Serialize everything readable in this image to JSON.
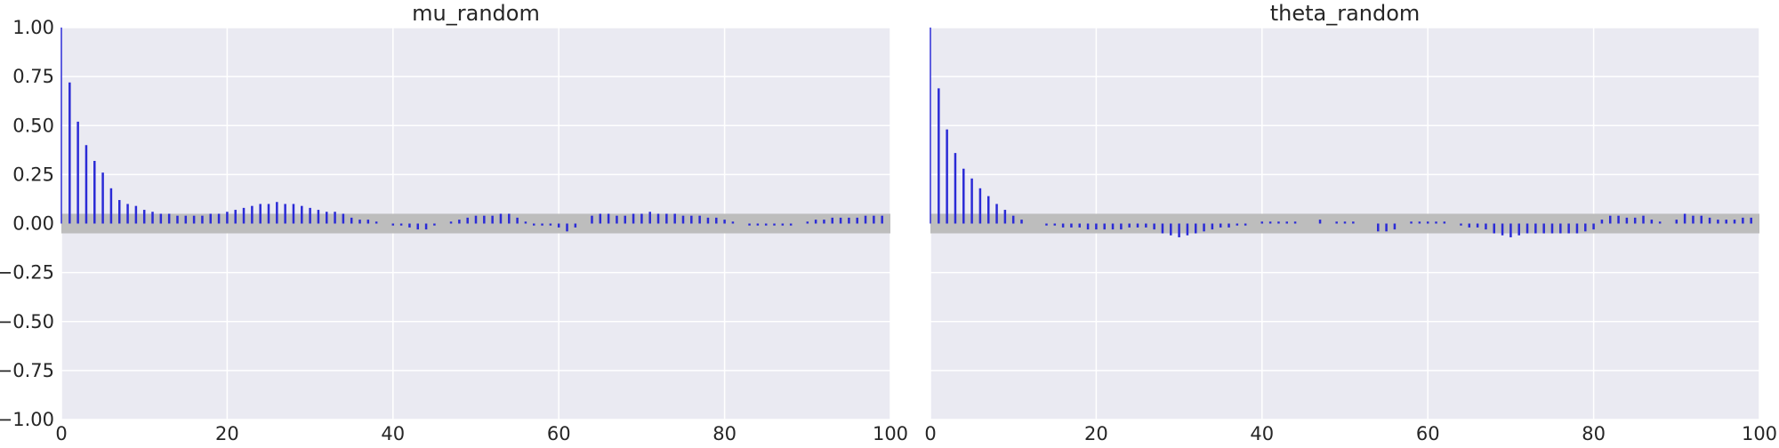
{
  "chart_data": [
    {
      "type": "bar",
      "subtype": "autocorrelation",
      "title": "mu_random",
      "xlabel": "",
      "ylabel": "",
      "xlim": [
        0,
        100
      ],
      "ylim": [
        -1.0,
        1.0
      ],
      "xticks": [
        "0",
        "20",
        "40",
        "60",
        "80",
        "100"
      ],
      "yticks": [
        "1.00",
        "0.75",
        "0.50",
        "0.25",
        "0.00",
        "−0.25",
        "−0.50",
        "−0.75",
        "−1.00"
      ],
      "grid": true,
      "confidence_band": 0.05,
      "lags": [
        0,
        1,
        2,
        3,
        4,
        5,
        6,
        7,
        8,
        9,
        10,
        11,
        12,
        13,
        14,
        15,
        16,
        17,
        18,
        19,
        20,
        21,
        22,
        23,
        24,
        25,
        26,
        27,
        28,
        29,
        30,
        31,
        32,
        33,
        34,
        35,
        36,
        37,
        38,
        39,
        40,
        41,
        42,
        43,
        44,
        45,
        46,
        47,
        48,
        49,
        50,
        51,
        52,
        53,
        54,
        55,
        56,
        57,
        58,
        59,
        60,
        61,
        62,
        63,
        64,
        65,
        66,
        67,
        68,
        69,
        70,
        71,
        72,
        73,
        74,
        75,
        76,
        77,
        78,
        79,
        80,
        81,
        82,
        83,
        84,
        85,
        86,
        87,
        88,
        89,
        90,
        91,
        92,
        93,
        94,
        95,
        96,
        97,
        98,
        99
      ],
      "values": [
        1.0,
        0.72,
        0.52,
        0.4,
        0.32,
        0.26,
        0.18,
        0.12,
        0.1,
        0.09,
        0.07,
        0.06,
        0.05,
        0.05,
        0.04,
        0.04,
        0.04,
        0.04,
        0.05,
        0.05,
        0.06,
        0.07,
        0.08,
        0.09,
        0.1,
        0.1,
        0.11,
        0.1,
        0.1,
        0.09,
        0.08,
        0.07,
        0.06,
        0.06,
        0.05,
        0.03,
        0.02,
        0.02,
        0.01,
        0.0,
        -0.01,
        -0.01,
        -0.02,
        -0.03,
        -0.03,
        -0.01,
        0.0,
        0.01,
        0.02,
        0.03,
        0.04,
        0.04,
        0.04,
        0.05,
        0.05,
        0.03,
        0.01,
        -0.01,
        -0.01,
        -0.01,
        -0.02,
        -0.04,
        -0.02,
        0.0,
        0.04,
        0.05,
        0.05,
        0.04,
        0.04,
        0.05,
        0.05,
        0.06,
        0.05,
        0.05,
        0.05,
        0.04,
        0.04,
        0.04,
        0.03,
        0.03,
        0.02,
        0.01,
        0.0,
        -0.01,
        -0.01,
        -0.01,
        -0.01,
        -0.01,
        -0.01,
        0.0,
        0.01,
        0.02,
        0.02,
        0.03,
        0.03,
        0.03,
        0.03,
        0.04,
        0.04,
        0.04
      ]
    },
    {
      "type": "bar",
      "subtype": "autocorrelation",
      "title": "theta_random",
      "xlabel": "",
      "ylabel": "",
      "xlim": [
        0,
        100
      ],
      "ylim": [
        -1.0,
        1.0
      ],
      "xticks": [
        "0",
        "20",
        "40",
        "60",
        "80",
        "100"
      ],
      "yticks": [],
      "grid": true,
      "confidence_band": 0.05,
      "lags": [
        0,
        1,
        2,
        3,
        4,
        5,
        6,
        7,
        8,
        9,
        10,
        11,
        12,
        13,
        14,
        15,
        16,
        17,
        18,
        19,
        20,
        21,
        22,
        23,
        24,
        25,
        26,
        27,
        28,
        29,
        30,
        31,
        32,
        33,
        34,
        35,
        36,
        37,
        38,
        39,
        40,
        41,
        42,
        43,
        44,
        45,
        46,
        47,
        48,
        49,
        50,
        51,
        52,
        53,
        54,
        55,
        56,
        57,
        58,
        59,
        60,
        61,
        62,
        63,
        64,
        65,
        66,
        67,
        68,
        69,
        70,
        71,
        72,
        73,
        74,
        75,
        76,
        77,
        78,
        79,
        80,
        81,
        82,
        83,
        84,
        85,
        86,
        87,
        88,
        89,
        90,
        91,
        92,
        93,
        94,
        95,
        96,
        97,
        98,
        99
      ],
      "values": [
        1.0,
        0.69,
        0.48,
        0.36,
        0.28,
        0.23,
        0.18,
        0.14,
        0.1,
        0.07,
        0.04,
        0.02,
        0.0,
        0.0,
        -0.01,
        -0.01,
        -0.02,
        -0.02,
        -0.02,
        -0.03,
        -0.03,
        -0.03,
        -0.03,
        -0.03,
        -0.02,
        -0.02,
        -0.02,
        -0.03,
        -0.05,
        -0.06,
        -0.07,
        -0.06,
        -0.05,
        -0.04,
        -0.03,
        -0.02,
        -0.02,
        -0.01,
        -0.01,
        0.0,
        0.01,
        0.01,
        0.01,
        0.01,
        0.01,
        0.0,
        0.0,
        0.02,
        0.0,
        0.01,
        0.01,
        0.01,
        0.0,
        0.0,
        -0.04,
        -0.04,
        -0.03,
        0.0,
        0.01,
        0.01,
        0.01,
        0.01,
        0.01,
        0.0,
        -0.01,
        -0.02,
        -0.02,
        -0.03,
        -0.05,
        -0.06,
        -0.07,
        -0.06,
        -0.05,
        -0.05,
        -0.05,
        -0.05,
        -0.05,
        -0.05,
        -0.05,
        -0.04,
        -0.03,
        0.02,
        0.04,
        0.04,
        0.03,
        0.03,
        0.04,
        0.02,
        0.01,
        0.0,
        0.02,
        0.05,
        0.04,
        0.04,
        0.03,
        0.02,
        0.02,
        0.02,
        0.03,
        0.03
      ]
    }
  ],
  "colors": {
    "plot_background": "#eaeaf2",
    "grid": "#ffffff",
    "bar": "#2b2bd6",
    "band": "#bdbdbd",
    "text": "#262626"
  }
}
